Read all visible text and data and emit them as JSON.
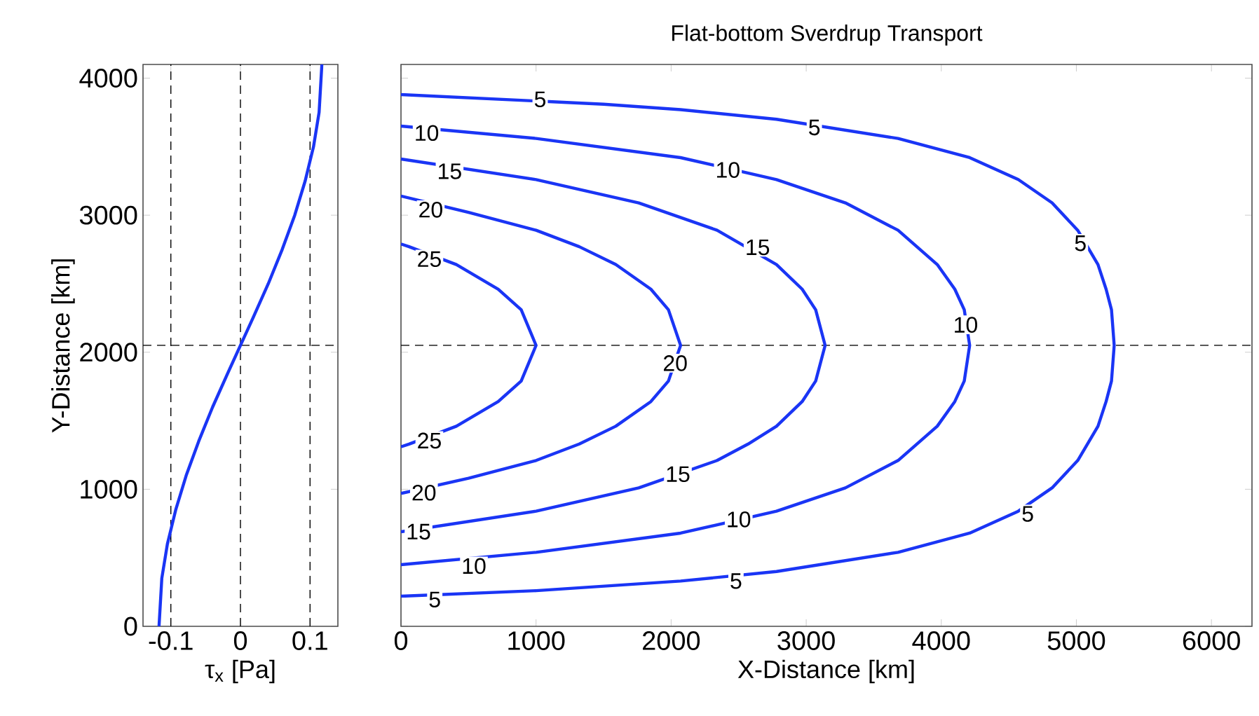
{
  "chart_data": [
    {
      "type": "line",
      "xlabel": "τ$_{x}$ [Pa]",
      "ylabel": "Y-Distance [km]",
      "xlim": [
        -0.14,
        0.14
      ],
      "xticks": [
        -0.1,
        0,
        0.1
      ],
      "ylim": [
        0,
        4100
      ],
      "yticks": [
        0,
        1000,
        2000,
        3000,
        4000
      ],
      "series": [
        {
          "color": "#1a35f5",
          "x": [
            -0.117,
            -0.113,
            -0.105,
            -0.093,
            -0.078,
            -0.06,
            -0.04,
            -0.018,
            0,
            0.018,
            0.04,
            0.06,
            0.078,
            0.093,
            0.105,
            0.113,
            0.117
          ],
          "values": [
            0,
            350,
            600,
            850,
            1100,
            1350,
            1600,
            1850,
            2050,
            2250,
            2500,
            2750,
            3000,
            3250,
            3500,
            3750,
            4100
          ]
        }
      ],
      "ref_lines": [
        {
          "axis": "x",
          "value": -0.1,
          "line_style": "dashed"
        },
        {
          "axis": "x",
          "value": 0,
          "line_style": "dashed"
        },
        {
          "axis": "x",
          "value": 0.1,
          "line_style": "dashed"
        },
        {
          "axis": "y",
          "value": 2050,
          "line_style": "dashed"
        }
      ]
    },
    {
      "type": "line",
      "title": "Flat-bottom Sverdrup Transport",
      "xlabel": "X-Distance [km]",
      "xlim": [
        0,
        6300
      ],
      "xticks": [
        0,
        1000,
        2000,
        3000,
        4000,
        5000,
        6000
      ],
      "ylim": [
        0,
        4100
      ],
      "yticks": [
        0,
        1000,
        2000,
        3000,
        4000
      ],
      "tick_labels": "x",
      "series": [
        {
          "color": "#1a35f5",
          "x": [
            0,
            1000,
            2070,
            2780,
            3680,
            4210,
            4570,
            4820,
            5010,
            5160,
            5220,
            5260,
            5280,
            5260,
            5220,
            5160,
            5010,
            4820,
            4570,
            4210,
            3680,
            2780,
            2070,
            1500,
            0
          ],
          "values": [
            220,
            260,
            330,
            400,
            540,
            680,
            840,
            1010,
            1210,
            1460,
            1640,
            1790,
            2050,
            2310,
            2460,
            2640,
            2890,
            3090,
            3260,
            3420,
            3560,
            3700,
            3770,
            3810,
            3880
          ]
        },
        {
          "color": "#1a35f5",
          "x": [
            0,
            1000,
            2070,
            2780,
            3290,
            3680,
            3970,
            4100,
            4170,
            4210,
            4170,
            4100,
            3970,
            3680,
            3290,
            2780,
            2070,
            1000,
            0
          ],
          "values": [
            450,
            540,
            680,
            840,
            1010,
            1210,
            1460,
            1640,
            1790,
            2050,
            2310,
            2460,
            2640,
            2890,
            3090,
            3260,
            3420,
            3560,
            3650
          ]
        },
        {
          "color": "#1a35f5",
          "x": [
            0,
            1000,
            1760,
            2340,
            2570,
            2780,
            2970,
            3070,
            3140,
            3070,
            2970,
            2780,
            2340,
            1760,
            1000,
            0
          ],
          "values": [
            690,
            840,
            1010,
            1210,
            1330,
            1460,
            1640,
            1790,
            2050,
            2310,
            2460,
            2640,
            2890,
            3090,
            3260,
            3410
          ]
        },
        {
          "color": "#1a35f5",
          "x": [
            0,
            500,
            1000,
            1320,
            1590,
            1850,
            1980,
            2070,
            1980,
            1850,
            1590,
            1320,
            1000,
            500,
            0
          ],
          "values": [
            970,
            1080,
            1210,
            1330,
            1460,
            1640,
            1790,
            2050,
            2310,
            2460,
            2640,
            2770,
            2890,
            3020,
            3140
          ]
        },
        {
          "color": "#1a35f5",
          "x": [
            0,
            60,
            410,
            720,
            890,
            1000,
            890,
            720,
            410,
            60,
            0
          ],
          "values": [
            1310,
            1330,
            1460,
            1640,
            1790,
            2050,
            2310,
            2460,
            2640,
            2770,
            2790
          ]
        }
      ],
      "ref_lines": [
        {
          "axis": "y",
          "value": 2050,
          "line_style": "dashed"
        }
      ],
      "annotations": [
        {
          "text": "5",
          "x": 1030,
          "y": 3845
        },
        {
          "text": "5",
          "x": 3060,
          "y": 3640
        },
        {
          "text": "5",
          "x": 5030,
          "y": 2795
        },
        {
          "text": "5",
          "x": 4640,
          "y": 820
        },
        {
          "text": "5",
          "x": 2480,
          "y": 330
        },
        {
          "text": "5",
          "x": 250,
          "y": 195
        },
        {
          "text": "10",
          "x": 190,
          "y": 3600
        },
        {
          "text": "10",
          "x": 2420,
          "y": 3330
        },
        {
          "text": "10",
          "x": 4180,
          "y": 2200
        },
        {
          "text": "10",
          "x": 2500,
          "y": 780
        },
        {
          "text": "10",
          "x": 540,
          "y": 440
        },
        {
          "text": "15",
          "x": 360,
          "y": 3320
        },
        {
          "text": "15",
          "x": 2640,
          "y": 2765
        },
        {
          "text": "15",
          "x": 2050,
          "y": 1110
        },
        {
          "text": "15",
          "x": 130,
          "y": 690
        },
        {
          "text": "20",
          "x": 220,
          "y": 3040
        },
        {
          "text": "20",
          "x": 2030,
          "y": 1920
        },
        {
          "text": "20",
          "x": 170,
          "y": 975
        },
        {
          "text": "25",
          "x": 210,
          "y": 2680
        },
        {
          "text": "25",
          "x": 210,
          "y": 1355
        }
      ]
    }
  ]
}
